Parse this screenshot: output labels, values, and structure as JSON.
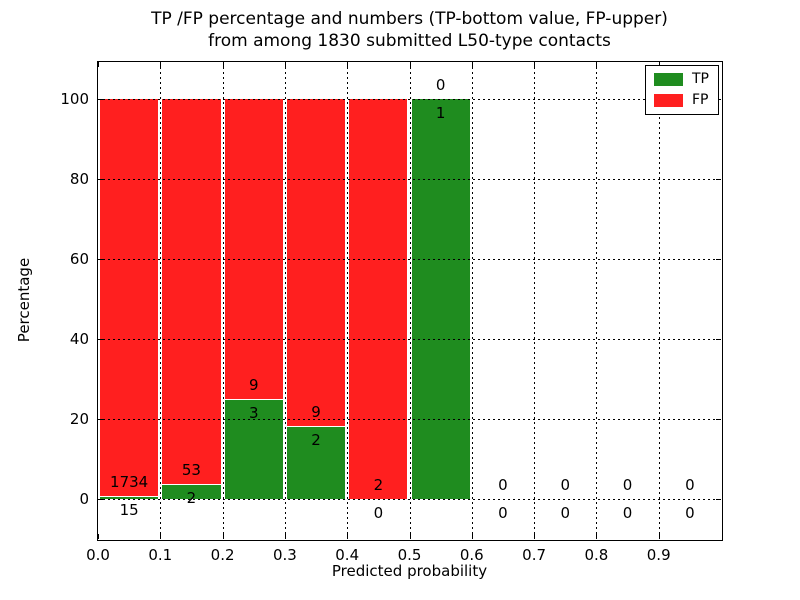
{
  "chart_data": {
    "type": "bar",
    "stacked": true,
    "title_lines": [
      "TP /FP percentage and numbers (TP-bottom value, FP-upper)",
      "from among 1830 submitted L50-type contacts"
    ],
    "xlabel": "Predicted probability",
    "ylabel": "Percentage",
    "xlim": [
      0.0,
      1.0
    ],
    "ylim": [
      -10,
      109.3
    ],
    "xtick_labels": [
      "0.0",
      "0.1",
      "0.2",
      "0.3",
      "0.4",
      "0.5",
      "0.6",
      "0.7",
      "0.8",
      "0.9"
    ],
    "ytick_values": [
      0,
      20,
      40,
      60,
      80,
      100
    ],
    "bin_width": 0.1,
    "total_contacts": 1830,
    "bins": [
      {
        "x_start": 0.0,
        "x_end": 0.1,
        "tp": 15,
        "fp": 1734
      },
      {
        "x_start": 0.1,
        "x_end": 0.2,
        "tp": 2,
        "fp": 53
      },
      {
        "x_start": 0.2,
        "x_end": 0.3,
        "tp": 3,
        "fp": 9
      },
      {
        "x_start": 0.3,
        "x_end": 0.4,
        "tp": 2,
        "fp": 9
      },
      {
        "x_start": 0.4,
        "x_end": 0.5,
        "tp": 0,
        "fp": 2
      },
      {
        "x_start": 0.5,
        "x_end": 0.6,
        "tp": 1,
        "fp": 0
      },
      {
        "x_start": 0.6,
        "x_end": 0.7,
        "tp": 0,
        "fp": 0
      },
      {
        "x_start": 0.7,
        "x_end": 0.8,
        "tp": 0,
        "fp": 0
      },
      {
        "x_start": 0.8,
        "x_end": 0.9,
        "tp": 0,
        "fp": 0
      },
      {
        "x_start": 0.9,
        "x_end": 1.0,
        "tp": 0,
        "fp": 0
      }
    ],
    "legend": {
      "position": "upper right",
      "entries": [
        {
          "label": "TP",
          "color": "#1f8c1f"
        },
        {
          "label": "FP",
          "color": "#ff1f1f"
        }
      ]
    },
    "colors": {
      "tp": "#1f8c1f",
      "fp": "#ff1f1f",
      "grid": "#000000",
      "text": "#000000",
      "background": "#ffffff",
      "bar_edge": "#ffffff"
    },
    "grid": {
      "style": "dotted",
      "axes": "both"
    }
  }
}
